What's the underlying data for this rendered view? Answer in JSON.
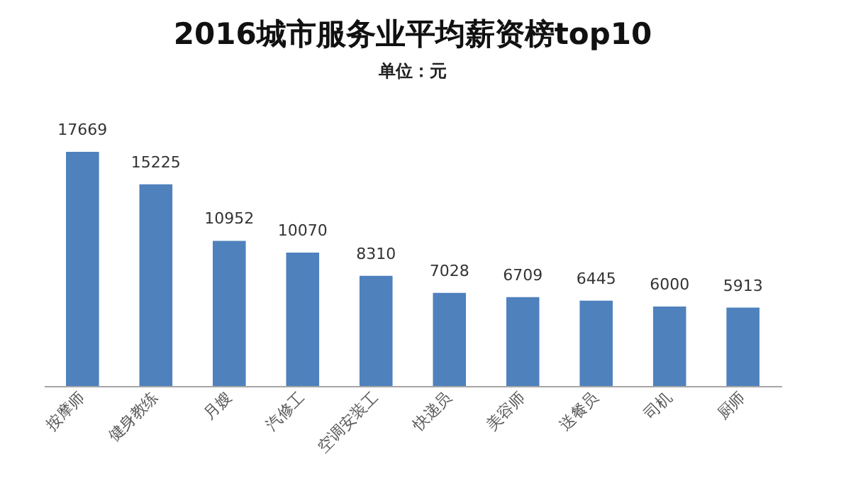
{
  "chart_data": {
    "type": "bar",
    "title": "2016城市服务业平均薪资榜top10",
    "subtitle": "单位：元",
    "categories": [
      "按摩师",
      "健身教练",
      "月嫂",
      "汽修工",
      "空调安装工",
      "快递员",
      "美容师",
      "送餐员",
      "司机",
      "厨师"
    ],
    "values": [
      17669,
      15225,
      10952,
      10070,
      8310,
      7028,
      6709,
      6445,
      6000,
      5913
    ],
    "color": "#4f81bd",
    "data_labels": true
  }
}
